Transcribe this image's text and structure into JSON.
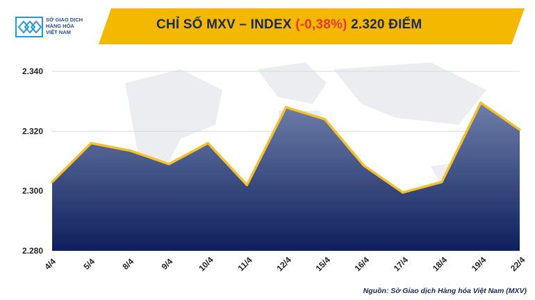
{
  "header": {
    "logo_lines": [
      "SỞ GIAO DỊCH",
      "HÀNG HÓA",
      "VIỆT NAM"
    ],
    "title_prefix": "CHỈ SỐ MXV – INDEX ",
    "title_change": "(-0,38%)",
    "title_suffix": " 2.320 ĐIỂM"
  },
  "source": "Nguồn: Sở Giao dịch Hàng hóa Việt Nam (MXV)",
  "colors": {
    "header_bg": "#f5b800",
    "title": "#1b2a55",
    "negative": "#e53935",
    "line": "#f5c02a",
    "area_top": "#6e7faa",
    "area_bottom": "#0f1f5c",
    "grid": "#d9d9d9"
  },
  "chart_data": {
    "type": "area",
    "title": "CHỈ SỐ MXV – INDEX (-0,38%) 2.320 ĐIỂM",
    "categories": [
      "4/4",
      "5/4",
      "8/4",
      "9/4",
      "10/4",
      "11/4",
      "12/4",
      "15/4",
      "16/4",
      "17/4",
      "18/4",
      "19/4",
      "22/4"
    ],
    "values": [
      2303,
      2316,
      2313.5,
      2309,
      2316,
      2302,
      2328,
      2324,
      2308.5,
      2299.5,
      2303,
      2329.5,
      2320.5
    ],
    "ylim": [
      2280,
      2340
    ],
    "yticks": [
      2280,
      2300,
      2320,
      2340
    ],
    "ytick_labels": [
      "2.280",
      "2.300",
      "2.320",
      "2.340"
    ],
    "xlabel": "",
    "ylabel": "",
    "grid": true,
    "legend": "none"
  }
}
